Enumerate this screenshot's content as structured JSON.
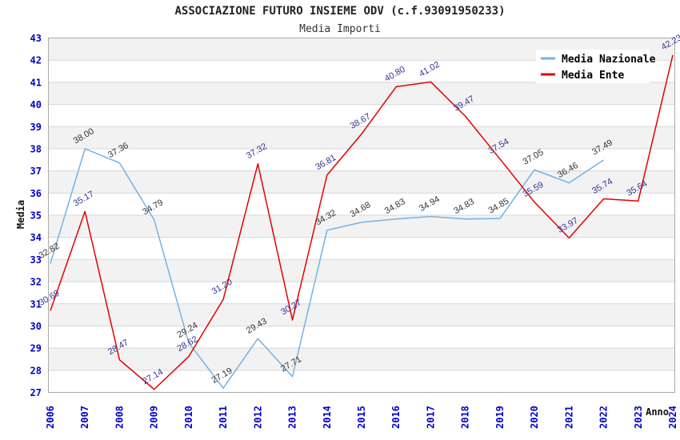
{
  "title": "ASSOCIAZIONE FUTURO INSIEME ODV (c.f.93091950233)",
  "subtitle": "Media Importi",
  "legend": {
    "items": [
      {
        "label": "Media Nazionale"
      },
      {
        "label": "Media Ente"
      }
    ]
  },
  "colors": {
    "nazionale_line": "#74b2e2",
    "ente_line": "#e60000",
    "nazionale_label": "#333333",
    "ente_label": "#333399",
    "axis_text": "#0000cc",
    "band_fill": "#f2f2f2",
    "grid_line": "#d8d8d8",
    "plot_border": "#aaaaaa",
    "legend_bg": "#ffffff"
  },
  "chart_data": {
    "type": "line",
    "title": "ASSOCIAZIONE FUTURO INSIEME ODV (c.f.93091950233)",
    "subtitle": "Media Importi",
    "xlabel": "Anno",
    "ylabel": "Media",
    "ylim": [
      27,
      43
    ],
    "y_tick_step": 1,
    "grid": "horizontal-bands",
    "legend_position": "top-right",
    "x": [
      "2006",
      "2007",
      "2008",
      "2009",
      "2010",
      "2011",
      "2012",
      "2013",
      "2014",
      "2015",
      "2016",
      "2017",
      "2018",
      "2019",
      "2020",
      "2021",
      "2022",
      "2023",
      "2024"
    ],
    "series": [
      {
        "name": "Media Nazionale",
        "color": "#74b2e2",
        "label_color": "#333333",
        "values": [
          32.82,
          38.0,
          37.36,
          34.79,
          29.24,
          27.19,
          29.43,
          27.71,
          34.32,
          34.68,
          34.83,
          34.94,
          34.83,
          34.85,
          37.05,
          36.46,
          37.49,
          null,
          null
        ]
      },
      {
        "name": "Media Ente",
        "color": "#e60000",
        "label_color": "#333399",
        "values": [
          30.69,
          35.17,
          28.47,
          27.14,
          28.62,
          31.2,
          37.32,
          30.27,
          36.81,
          38.67,
          40.8,
          41.02,
          39.47,
          37.54,
          35.59,
          33.97,
          35.74,
          35.64,
          42.23
        ]
      }
    ]
  }
}
